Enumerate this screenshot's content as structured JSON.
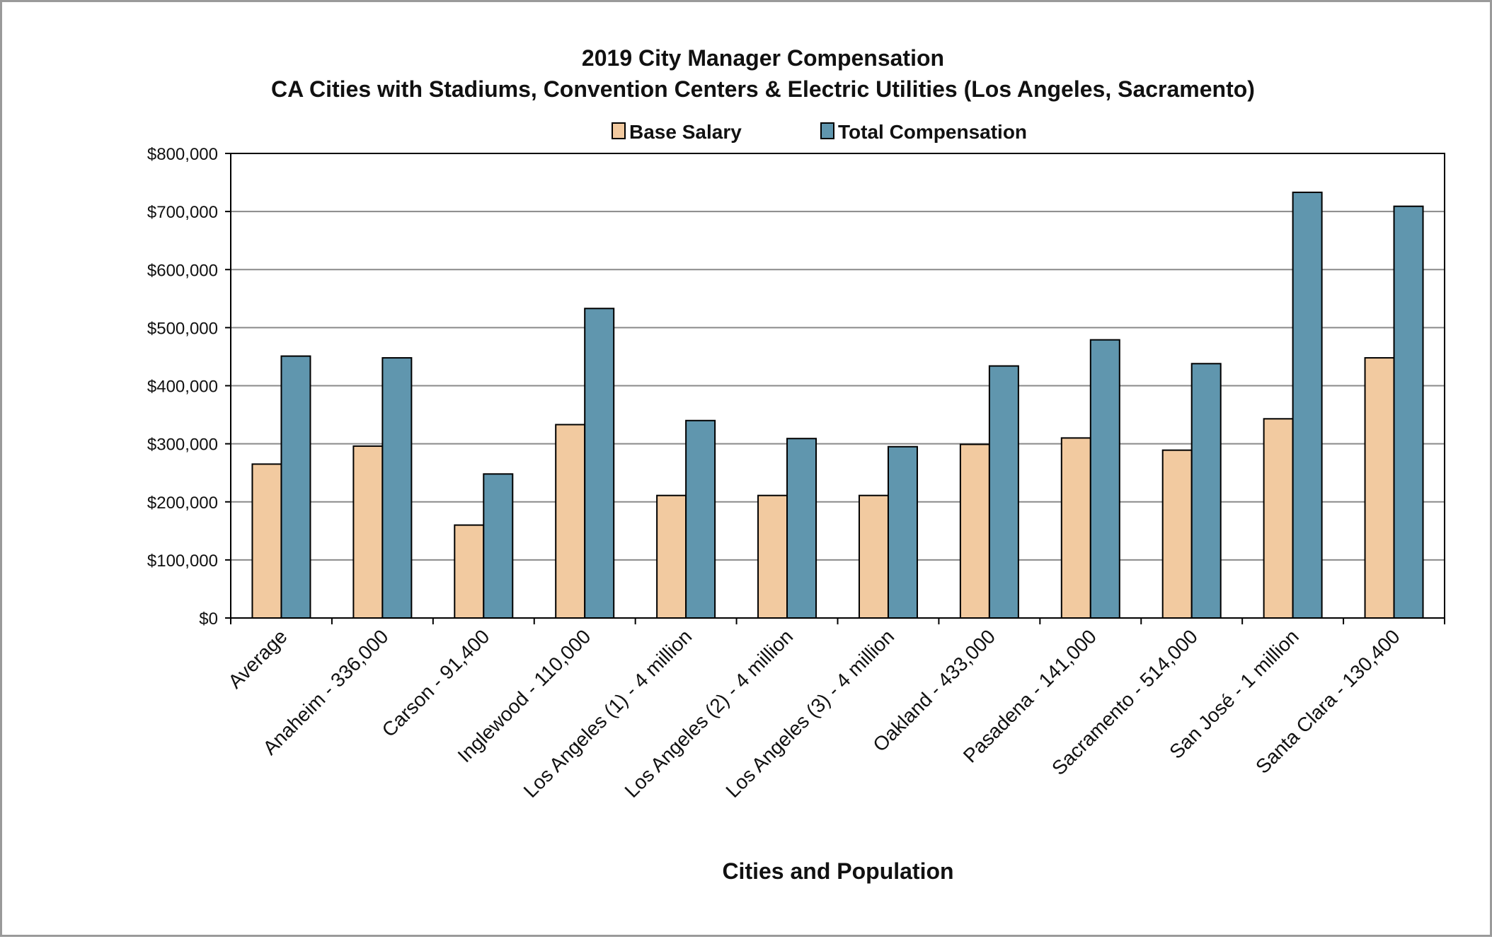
{
  "chart_data": {
    "type": "bar",
    "title": "2019 City Manager Compensation",
    "subtitle": "CA Cities with Stadiums, Convention Centers & Electric Utilities (Los Angeles, Sacramento)",
    "xlabel": "Cities and Population",
    "ylabel": "",
    "ylim": [
      0,
      800000
    ],
    "yticks": [
      0,
      100000,
      200000,
      300000,
      400000,
      500000,
      600000,
      700000,
      800000
    ],
    "ytick_labels": [
      "$0",
      "$100,000",
      "$200,000",
      "$300,000",
      "$400,000",
      "$500,000",
      "$600,000",
      "$700,000",
      "$800,000"
    ],
    "grid": true,
    "legend_position": "top-center",
    "categories": [
      "Average",
      "Anaheim - 336,000",
      "Carson - 91,400",
      "Inglewood - 110,000",
      "Los Angeles (1) - 4 million",
      "Los Angeles (2) - 4 million",
      "Los Angeles (3) - 4 million",
      "Oakland - 433,000",
      "Pasadena - 141,000",
      "Sacramento - 514,000",
      "San José - 1 million",
      "Santa Clara - 130,400"
    ],
    "series": [
      {
        "name": "Base Salary",
        "color": "#f2caa0",
        "values": [
          265000,
          296000,
          160000,
          333000,
          211000,
          211000,
          211000,
          299000,
          310000,
          289000,
          343000,
          448000
        ]
      },
      {
        "name": "Total Compensation",
        "color": "#6096ae",
        "values": [
          451000,
          448000,
          248000,
          533000,
          340000,
          309000,
          295000,
          434000,
          479000,
          438000,
          733000,
          709000
        ]
      }
    ]
  }
}
